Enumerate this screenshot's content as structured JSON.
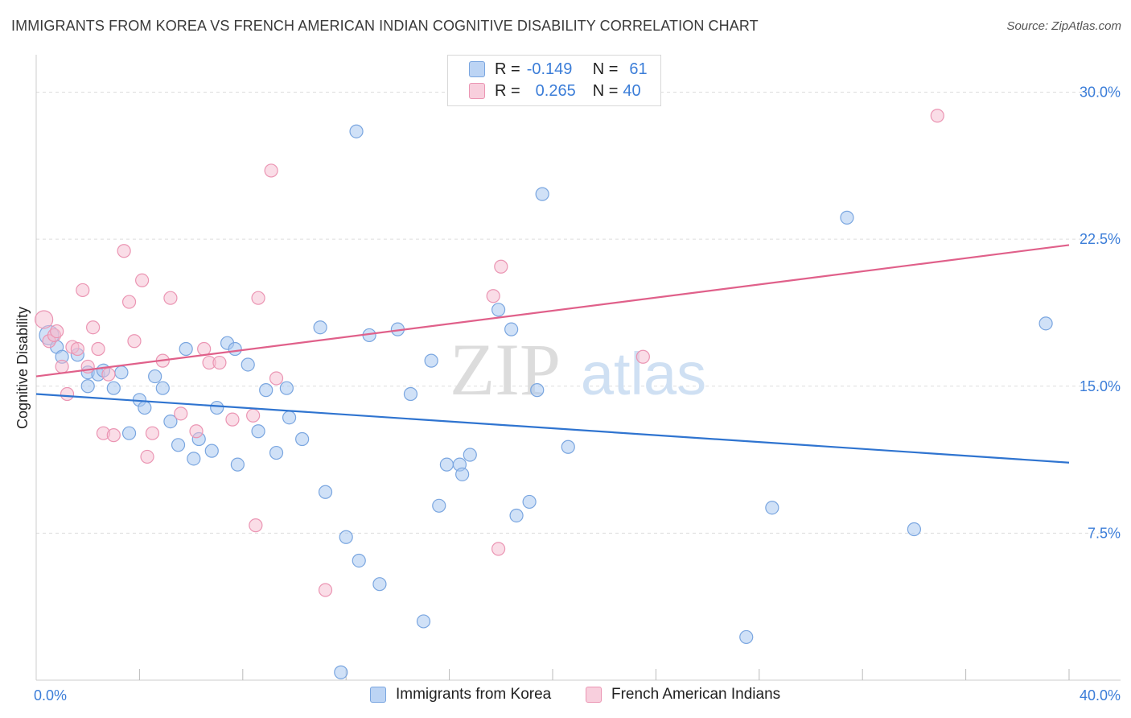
{
  "title": "IMMIGRANTS FROM KOREA VS FRENCH AMERICAN INDIAN COGNITIVE DISABILITY CORRELATION CHART",
  "source": "Source: ZipAtlas.com",
  "watermark": {
    "zip": "ZIP",
    "atlas": "atlas"
  },
  "legend": {
    "rows": [
      {
        "r_label": "R =",
        "r_value": "-0.149",
        "n_label": "N =",
        "n_value": "61"
      },
      {
        "r_label": "R =",
        "r_value": "0.265",
        "n_label": "N =",
        "n_value": "40"
      }
    ]
  },
  "bottom_legend": [
    "Immigrants from Korea",
    "French American Indians"
  ],
  "colors": {
    "series1_fill": "#aac8f0",
    "series1_stroke": "#7aa6e0",
    "series1_line": "#2f74d0",
    "series2_fill": "#f5bcd0",
    "series2_stroke": "#eb95b3",
    "series2_line": "#e0608a",
    "tick_text": "#3b7dd8",
    "grid": "#dddddd"
  },
  "chart_data": {
    "type": "scatter",
    "title": "IMMIGRANTS FROM KOREA VS FRENCH AMERICAN INDIAN COGNITIVE DISABILITY CORRELATION CHART",
    "xlabel": "",
    "ylabel": "Cognitive Disability",
    "xlim": [
      0,
      40
    ],
    "ylim": [
      0,
      31.5
    ],
    "x_tick_labels": [
      {
        "value": 0,
        "label": "0.0%"
      },
      {
        "value": 40,
        "label": "40.0%"
      }
    ],
    "y_tick_labels": [
      {
        "value": 7.5,
        "label": "7.5%"
      },
      {
        "value": 15,
        "label": "15.0%"
      },
      {
        "value": 22.5,
        "label": "22.5%"
      },
      {
        "value": 30,
        "label": "30.0%"
      }
    ],
    "grid": true,
    "series": [
      {
        "name": "Immigrants from Korea",
        "points": [
          [
            0.5,
            17.6
          ],
          [
            0.8,
            17.0
          ],
          [
            1.0,
            16.5
          ],
          [
            1.6,
            16.6
          ],
          [
            2.0,
            15.7
          ],
          [
            2.0,
            15.0
          ],
          [
            2.4,
            15.6
          ],
          [
            2.6,
            15.8
          ],
          [
            3.0,
            14.9
          ],
          [
            3.3,
            15.7
          ],
          [
            3.6,
            12.6
          ],
          [
            4.0,
            14.3
          ],
          [
            4.2,
            13.9
          ],
          [
            4.6,
            15.5
          ],
          [
            4.9,
            14.9
          ],
          [
            5.2,
            13.2
          ],
          [
            5.5,
            12.0
          ],
          [
            5.8,
            16.9
          ],
          [
            6.1,
            11.3
          ],
          [
            6.3,
            12.3
          ],
          [
            6.8,
            11.7
          ],
          [
            7.0,
            13.9
          ],
          [
            7.4,
            17.2
          ],
          [
            7.7,
            16.9
          ],
          [
            7.8,
            11.0
          ],
          [
            8.2,
            16.1
          ],
          [
            8.6,
            12.7
          ],
          [
            8.9,
            14.8
          ],
          [
            9.3,
            11.6
          ],
          [
            9.7,
            14.9
          ],
          [
            9.8,
            13.4
          ],
          [
            10.3,
            12.3
          ],
          [
            11.0,
            18.0
          ],
          [
            11.2,
            9.6
          ],
          [
            12.0,
            7.3
          ],
          [
            11.8,
            0.4
          ],
          [
            12.4,
            28.0
          ],
          [
            12.5,
            6.1
          ],
          [
            12.9,
            17.6
          ],
          [
            13.3,
            4.9
          ],
          [
            14.0,
            17.9
          ],
          [
            14.5,
            14.6
          ],
          [
            15.0,
            3.0
          ],
          [
            15.3,
            16.3
          ],
          [
            15.6,
            8.9
          ],
          [
            15.9,
            11.0
          ],
          [
            16.4,
            11.0
          ],
          [
            16.5,
            10.5
          ],
          [
            16.8,
            11.5
          ],
          [
            17.9,
            18.9
          ],
          [
            18.4,
            17.9
          ],
          [
            18.6,
            8.4
          ],
          [
            19.1,
            9.1
          ],
          [
            19.4,
            14.8
          ],
          [
            19.6,
            24.8
          ],
          [
            20.6,
            11.9
          ],
          [
            27.5,
            2.2
          ],
          [
            28.5,
            8.8
          ],
          [
            31.4,
            23.6
          ],
          [
            34.0,
            7.7
          ],
          [
            39.1,
            18.2
          ]
        ],
        "trend": {
          "x": [
            0,
            40
          ],
          "y": [
            14.6,
            11.1
          ]
        }
      },
      {
        "name": "French American Indians",
        "points": [
          [
            0.3,
            18.4
          ],
          [
            0.5,
            17.3
          ],
          [
            0.7,
            17.6
          ],
          [
            0.8,
            17.8
          ],
          [
            1.0,
            16.0
          ],
          [
            1.2,
            14.6
          ],
          [
            1.4,
            17.0
          ],
          [
            1.6,
            16.9
          ],
          [
            1.8,
            19.9
          ],
          [
            2.0,
            16.0
          ],
          [
            2.2,
            18.0
          ],
          [
            2.4,
            16.9
          ],
          [
            2.6,
            12.6
          ],
          [
            2.8,
            15.6
          ],
          [
            3.0,
            12.5
          ],
          [
            3.4,
            21.9
          ],
          [
            3.6,
            19.3
          ],
          [
            3.8,
            17.3
          ],
          [
            4.1,
            20.4
          ],
          [
            4.3,
            11.4
          ],
          [
            4.5,
            12.6
          ],
          [
            4.9,
            16.3
          ],
          [
            5.2,
            19.5
          ],
          [
            5.6,
            13.6
          ],
          [
            6.2,
            12.7
          ],
          [
            6.5,
            16.9
          ],
          [
            6.7,
            16.2
          ],
          [
            7.1,
            16.2
          ],
          [
            7.6,
            13.3
          ],
          [
            8.4,
            13.5
          ],
          [
            8.5,
            7.9
          ],
          [
            8.6,
            19.5
          ],
          [
            9.1,
            26.0
          ],
          [
            9.3,
            15.4
          ],
          [
            11.2,
            4.6
          ],
          [
            17.7,
            19.6
          ],
          [
            17.9,
            6.7
          ],
          [
            18.0,
            21.1
          ],
          [
            23.5,
            16.5
          ],
          [
            34.9,
            28.8
          ]
        ],
        "trend": {
          "x": [
            0,
            40
          ],
          "y": [
            15.5,
            22.2
          ]
        }
      }
    ]
  }
}
